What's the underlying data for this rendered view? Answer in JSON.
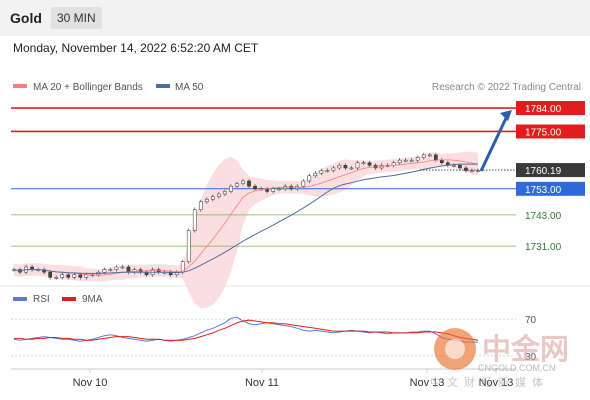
{
  "header": {
    "instrument": "Gold",
    "timeframe": "30 MIN",
    "datetime": "Monday, November 14, 2022 6:52:20 AM CET"
  },
  "colors": {
    "resistance": "#e01e1e",
    "support": "#2e6ad8",
    "support_green": "#7cb342",
    "ma20": "#f08080",
    "ma50": "#4a6fa5",
    "band": "#fadadd",
    "rsi": "#5b7bd5",
    "rsi_ma": "#e01e1e",
    "price_tag": "#3a3a3a",
    "arrow": "#2f5fa8"
  },
  "chart_data": [
    {
      "type": "candlestick",
      "legend": [
        {
          "name": "MA 20 + Bollinger Bands",
          "color": "#f08080"
        },
        {
          "name": "MA 50",
          "color": "#4a6fa5"
        }
      ],
      "credit": "Research © 2022 Trading Central",
      "ylim": [
        1718,
        1789
      ],
      "x_labels": [
        "Nov 10",
        "Nov 11",
        "Nov 13",
        "Nov 13"
      ],
      "current_price": {
        "label": "1760.19",
        "value": 1760.19
      },
      "levels": [
        {
          "label": "1784.00",
          "value": 1784,
          "kind": "resistance"
        },
        {
          "label": "1775.00",
          "value": 1775,
          "kind": "resistance"
        },
        {
          "label": "1753.00",
          "value": 1753,
          "kind": "pivot"
        },
        {
          "label": "1743.00",
          "value": 1743,
          "kind": "support"
        },
        {
          "label": "1731.00",
          "value": 1731,
          "kind": "support"
        }
      ],
      "close_path": [
        1722,
        1721,
        1723,
        1722,
        1722,
        1721,
        1719,
        1719,
        1720,
        1719,
        1720,
        1719,
        1720,
        1720,
        1721,
        1722,
        1722,
        1723,
        1723,
        1721,
        1722,
        1721,
        1720,
        1722,
        1721,
        1721,
        1720,
        1721,
        1725,
        1737,
        1745,
        1748,
        1749,
        1750,
        1751,
        1752,
        1754,
        1755,
        1756,
        1754,
        1753,
        1753,
        1752,
        1753,
        1753,
        1754,
        1753,
        1754,
        1756,
        1758,
        1759,
        1760,
        1760,
        1761,
        1762,
        1761,
        1761,
        1763,
        1763,
        1762,
        1761,
        1762,
        1762,
        1763,
        1764,
        1764,
        1764,
        1765,
        1766,
        1766,
        1764,
        1763,
        1762,
        1762,
        1761,
        1760,
        1760,
        1760
      ],
      "forecast": {
        "from": 1760.19,
        "to": 1784
      }
    },
    {
      "type": "line",
      "legend": [
        {
          "name": "RSI",
          "color": "#5b7bd5"
        },
        {
          "name": "9MA",
          "color": "#e01e1e"
        }
      ],
      "ylim": [
        20,
        80
      ],
      "y_tick_labels": [
        {
          "label": "70",
          "value": 70
        },
        {
          "label": "30",
          "value": 30
        }
      ],
      "series": [
        {
          "values": [
            48,
            47,
            48,
            49,
            50,
            51,
            50,
            49,
            48,
            48,
            47,
            46,
            47,
            48,
            50,
            52,
            53,
            52,
            50,
            49,
            48,
            47,
            46,
            47,
            48,
            47,
            46,
            47,
            48,
            50,
            52,
            55,
            58,
            60,
            63,
            66,
            71,
            72,
            68,
            65,
            64,
            65,
            66,
            65,
            64,
            63,
            62,
            60,
            58,
            57,
            58,
            57,
            56,
            55,
            56,
            57,
            58,
            57,
            56,
            55,
            56,
            55,
            54,
            55,
            55,
            55,
            56,
            56,
            57,
            57,
            54,
            50,
            48,
            47,
            46,
            45,
            45,
            45
          ]
        },
        {
          "values": [
            49,
            49,
            48,
            48,
            49,
            49,
            50,
            50,
            49,
            49,
            48,
            48,
            47,
            47,
            48,
            49,
            50,
            51,
            51,
            51,
            50,
            49,
            48,
            48,
            48,
            47,
            47,
            47,
            47,
            48,
            49,
            51,
            53,
            55,
            58,
            60,
            63,
            66,
            68,
            69,
            68,
            67,
            66,
            66,
            65,
            65,
            64,
            63,
            62,
            61,
            60,
            59,
            58,
            57,
            57,
            57,
            57,
            57,
            57,
            56,
            56,
            56,
            56,
            55,
            55,
            55,
            55,
            55,
            56,
            56,
            56,
            55,
            54,
            52,
            50,
            49,
            48,
            47
          ]
        }
      ]
    }
  ],
  "watermark": {
    "name": "中金网",
    "domain": "CNGOLD.COM.CN",
    "slogan": "中文财经新媒体"
  }
}
